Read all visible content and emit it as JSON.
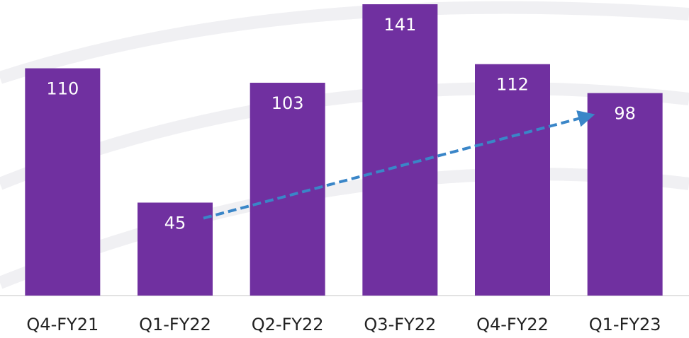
{
  "chart_data": {
    "type": "bar",
    "categories": [
      "Q4-FY21",
      "Q1-FY22",
      "Q2-FY22",
      "Q3-FY22",
      "Q4-FY22",
      "Q1-FY23"
    ],
    "values": [
      110,
      45,
      103,
      141,
      112,
      98
    ],
    "color": "#7030a0",
    "trend_color": "#3a86c8"
  }
}
